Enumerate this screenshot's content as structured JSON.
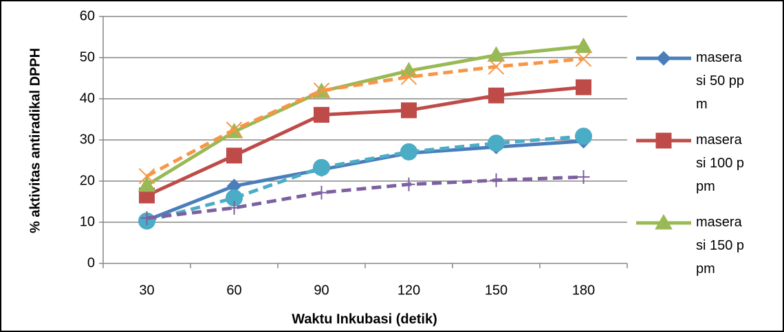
{
  "chart_data": {
    "type": "line",
    "xlabel": "Waktu Inkubasi (detik)",
    "ylabel": "% aktivitas antiradikal DPPH",
    "categories": [
      "30",
      "60",
      "90",
      "120",
      "150",
      "180"
    ],
    "ylim": [
      0,
      60
    ],
    "yticks": [
      0,
      10,
      20,
      30,
      40,
      50,
      60
    ],
    "grid": true,
    "legend": "right",
    "series": [
      {
        "name": "maserasi 50 ppm",
        "color": "#4a7ebb",
        "marker": "diamond",
        "dashed": false,
        "values": [
          10.5,
          18.8,
          22.8,
          26.8,
          28.3,
          29.7
        ]
      },
      {
        "name": "maserasi 100 ppm",
        "color": "#be4b48",
        "marker": "square",
        "dashed": false,
        "values": [
          16.5,
          26.2,
          36.1,
          37.2,
          40.8,
          42.8
        ]
      },
      {
        "name": "maserasi 150 ppm",
        "color": "#98b954",
        "marker": "triangle",
        "dashed": false,
        "values": [
          19,
          32,
          41.8,
          46.8,
          50.6,
          52.7
        ]
      },
      {
        "color": "#f79646",
        "marker": "x",
        "dashed": true,
        "values": [
          21.2,
          32.5,
          42,
          45.3,
          47.8,
          49.7
        ]
      },
      {
        "color": "#4bacc6",
        "marker": "circle",
        "dashed": true,
        "values": [
          10.3,
          15.9,
          23.3,
          27.1,
          29.2,
          30.9
        ]
      },
      {
        "color": "#7d60a0",
        "marker": "plus",
        "dashed": true,
        "values": [
          11,
          13.5,
          17.2,
          19.2,
          20.2,
          21
        ]
      }
    ]
  }
}
